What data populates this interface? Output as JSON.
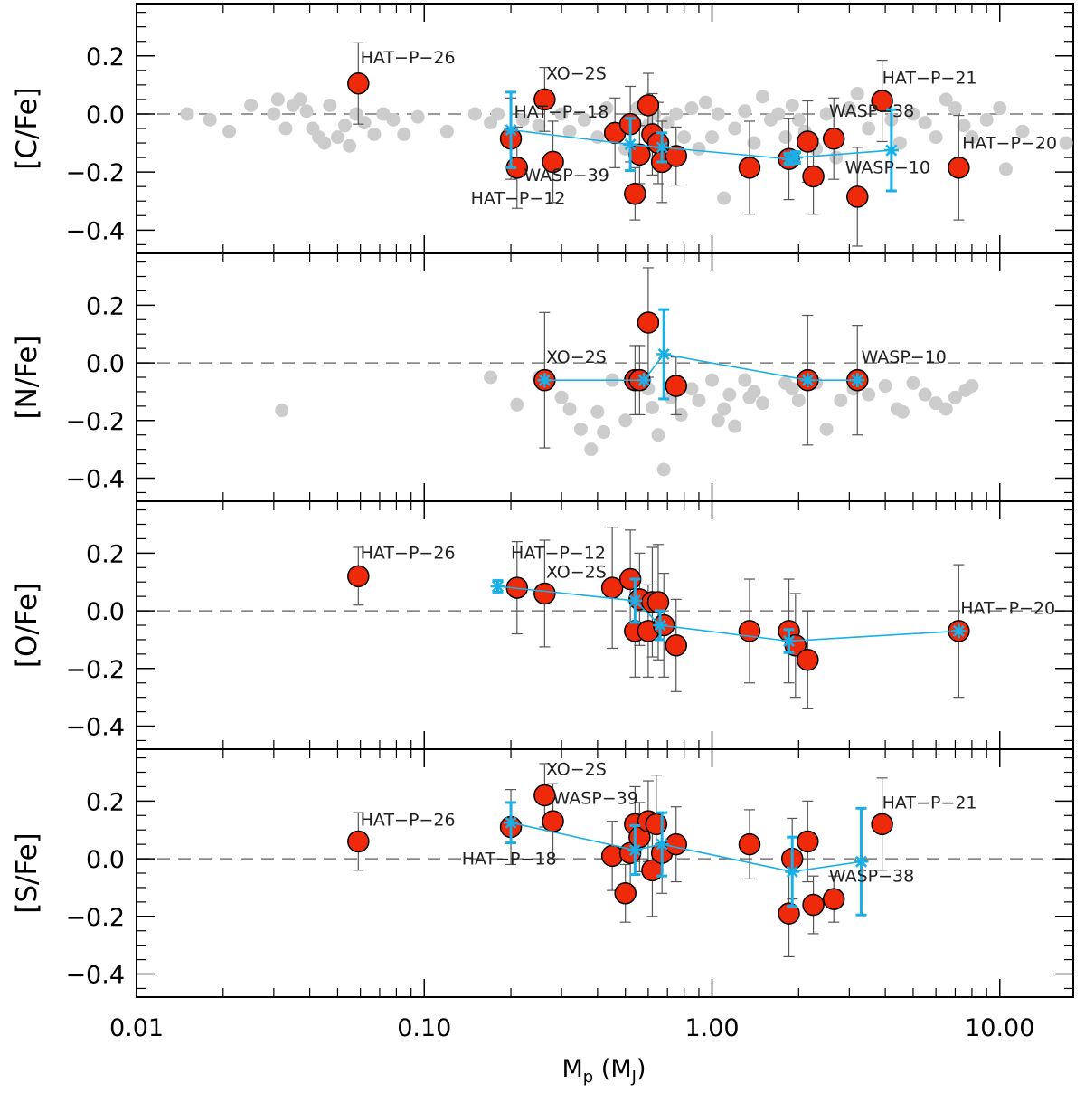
{
  "chart_data": {
    "type": "scatter",
    "x_axis": {
      "label_main": "M",
      "label_sub": "p",
      "label_unit_open": " (M",
      "label_unit_sub": "J",
      "label_unit_close": ")",
      "scale": "log",
      "xlim": [
        0.01,
        18
      ],
      "ticks": [
        0.01,
        0.1,
        1.0,
        10.0
      ],
      "tick_labels": [
        "0.01",
        "0.10",
        "1.00",
        "10.00"
      ]
    },
    "colors": {
      "planet_fill": "#ee2a0b",
      "field_star": "#cccccc",
      "trend": "#19b0e8",
      "error_bar": "#555555",
      "reference_line": "#777777"
    },
    "panels": [
      {
        "id": "c",
        "ylabel": "[C/Fe]",
        "ylim": [
          -0.48,
          0.38
        ],
        "yticks": [
          0.2,
          0.0,
          -0.2,
          -0.4
        ],
        "ytick_labels": [
          "0.2",
          "0.0",
          "−0.2",
          "−0.4"
        ],
        "field_stars": [
          [
            0.015,
            0.0
          ],
          [
            0.018,
            -0.02
          ],
          [
            0.021,
            -0.06
          ],
          [
            0.025,
            0.03
          ],
          [
            0.03,
            0.0
          ],
          [
            0.031,
            0.05
          ],
          [
            0.033,
            -0.05
          ],
          [
            0.035,
            0.03
          ],
          [
            0.037,
            0.05
          ],
          [
            0.039,
            0.01
          ],
          [
            0.041,
            -0.05
          ],
          [
            0.043,
            -0.08
          ],
          [
            0.045,
            -0.1
          ],
          [
            0.047,
            0.03
          ],
          [
            0.05,
            -0.08
          ],
          [
            0.053,
            -0.04
          ],
          [
            0.055,
            -0.11
          ],
          [
            0.058,
            0.0
          ],
          [
            0.062,
            -0.03
          ],
          [
            0.067,
            -0.07
          ],
          [
            0.072,
            0.0
          ],
          [
            0.078,
            -0.02
          ],
          [
            0.085,
            -0.07
          ],
          [
            0.095,
            -0.01
          ],
          [
            0.12,
            -0.06
          ],
          [
            0.15,
            0.0
          ],
          [
            0.17,
            -0.03
          ],
          [
            0.18,
            0.0
          ],
          [
            0.22,
            -0.02
          ],
          [
            0.25,
            -0.04
          ],
          [
            0.3,
            0.0
          ],
          [
            0.32,
            -0.06
          ],
          [
            0.36,
            -0.02
          ],
          [
            0.4,
            -0.08
          ],
          [
            0.43,
            0.02
          ],
          [
            0.5,
            -0.12
          ],
          [
            0.55,
            0.02
          ],
          [
            0.6,
            -0.04
          ],
          [
            0.63,
            0.0
          ],
          [
            0.7,
            -0.03
          ],
          [
            0.75,
            0.0
          ],
          [
            0.8,
            -0.08
          ],
          [
            0.85,
            0.02
          ],
          [
            0.9,
            -0.12
          ],
          [
            0.95,
            0.04
          ],
          [
            1.0,
            -0.08
          ],
          [
            1.05,
            0.0
          ],
          [
            1.1,
            -0.29
          ],
          [
            1.2,
            -0.05
          ],
          [
            1.3,
            0.01
          ],
          [
            1.4,
            -0.1
          ],
          [
            1.5,
            0.06
          ],
          [
            1.6,
            -0.02
          ],
          [
            1.7,
            0.0
          ],
          [
            1.8,
            -0.08
          ],
          [
            1.9,
            0.03
          ],
          [
            2.0,
            -0.02
          ],
          [
            2.1,
            -0.06
          ],
          [
            2.3,
            -0.12
          ],
          [
            2.5,
            0.0
          ],
          [
            2.7,
            -0.15
          ],
          [
            3.0,
            0.02
          ],
          [
            3.2,
            0.07
          ],
          [
            3.5,
            -0.05
          ],
          [
            3.8,
            0.04
          ],
          [
            4.2,
            -0.02
          ],
          [
            4.5,
            -0.1
          ],
          [
            5.0,
            0.0
          ],
          [
            5.5,
            -0.03
          ],
          [
            6.0,
            -0.08
          ],
          [
            6.5,
            0.05
          ],
          [
            7.0,
            0.02
          ],
          [
            7.5,
            -0.04
          ],
          [
            8.0,
            -0.08
          ],
          [
            9.0,
            -0.02
          ],
          [
            10.0,
            0.02
          ],
          [
            10.5,
            -0.19
          ],
          [
            12.0,
            -0.06
          ],
          [
            17.0,
            -0.1
          ]
        ],
        "planets": [
          [
            0.059,
            0.105,
            0.14
          ],
          [
            0.2,
            -0.085,
            0.14
          ],
          [
            0.21,
            -0.185,
            0.14
          ],
          [
            0.262,
            0.05,
            0.11
          ],
          [
            0.28,
            -0.165,
            0.14
          ],
          [
            0.46,
            -0.065,
            0.12
          ],
          [
            0.52,
            -0.035,
            0.13
          ],
          [
            0.54,
            -0.275,
            0.09
          ],
          [
            0.56,
            -0.14,
            0.1
          ],
          [
            0.6,
            0.03,
            0.11
          ],
          [
            0.62,
            -0.07,
            0.14
          ],
          [
            0.65,
            -0.1,
            0.14
          ],
          [
            0.67,
            -0.165,
            0.14
          ],
          [
            0.75,
            -0.145,
            0.1
          ],
          [
            1.35,
            -0.185,
            0.16
          ],
          [
            1.85,
            -0.155,
            0.14
          ],
          [
            2.15,
            -0.095,
            0.14
          ],
          [
            2.25,
            -0.215,
            0.13
          ],
          [
            2.65,
            -0.085,
            0.14
          ],
          [
            3.2,
            -0.285,
            0.17
          ],
          [
            3.9,
            0.045,
            0.14
          ],
          [
            7.2,
            -0.185,
            0.18
          ]
        ],
        "trend": [
          [
            0.2,
            -0.055,
            0.13
          ],
          [
            0.52,
            -0.105,
            0.09
          ],
          [
            0.67,
            -0.115,
            0.05
          ],
          [
            1.85,
            -0.155,
            0.02
          ],
          [
            1.95,
            -0.15,
            0.02
          ],
          [
            4.2,
            -0.125,
            0.14
          ]
        ],
        "annotations": [
          {
            "text": "HAT−P−26",
            "x": 0.06,
            "y": 0.175
          },
          {
            "text": "XO−2S",
            "x": 0.265,
            "y": 0.12
          },
          {
            "text": "HAT−P−18",
            "x": 0.205,
            "y": -0.012
          },
          {
            "text": "WASP−39",
            "x": 0.222,
            "y": -0.23
          },
          {
            "text": "HAT−P−12",
            "x": 0.145,
            "y": -0.31
          },
          {
            "text": "HAT−P−21",
            "x": 3.9,
            "y": 0.105
          },
          {
            "text": "WASP−38",
            "x": 2.55,
            "y": -0.01
          },
          {
            "text": "WASP−10",
            "x": 2.9,
            "y": -0.205
          },
          {
            "text": "HAT−P−20",
            "x": 7.4,
            "y": -0.12
          }
        ]
      },
      {
        "id": "n",
        "ylabel": "[N/Fe]",
        "ylim": [
          -0.48,
          0.38
        ],
        "yticks": [
          0.2,
          0.0,
          -0.2,
          -0.4
        ],
        "ytick_labels": [
          "0.2",
          "0.0",
          "−0.2",
          "−0.4"
        ],
        "field_stars": [
          [
            0.032,
            -0.165
          ],
          [
            0.17,
            -0.05
          ],
          [
            0.21,
            -0.145
          ],
          [
            0.25,
            -0.05
          ],
          [
            0.3,
            -0.12
          ],
          [
            0.32,
            -0.16
          ],
          [
            0.35,
            -0.23
          ],
          [
            0.38,
            -0.3
          ],
          [
            0.4,
            -0.17
          ],
          [
            0.42,
            -0.24
          ],
          [
            0.45,
            -0.06
          ],
          [
            0.5,
            -0.2
          ],
          [
            0.55,
            -0.07
          ],
          [
            0.6,
            -0.09
          ],
          [
            0.62,
            -0.155
          ],
          [
            0.65,
            -0.25
          ],
          [
            0.68,
            -0.37
          ],
          [
            0.72,
            -0.12
          ],
          [
            0.78,
            -0.18
          ],
          [
            0.85,
            -0.09
          ],
          [
            0.9,
            -0.13
          ],
          [
            1.0,
            -0.06
          ],
          [
            1.05,
            -0.2
          ],
          [
            1.1,
            -0.16
          ],
          [
            1.15,
            -0.11
          ],
          [
            1.2,
            -0.22
          ],
          [
            1.3,
            -0.06
          ],
          [
            1.35,
            -0.12
          ],
          [
            1.4,
            -0.1
          ],
          [
            1.5,
            -0.14
          ],
          [
            1.8,
            -0.07
          ],
          [
            1.9,
            -0.09
          ],
          [
            2.0,
            -0.13
          ],
          [
            2.3,
            -0.07
          ],
          [
            2.5,
            -0.23
          ],
          [
            2.8,
            -0.13
          ],
          [
            3.1,
            -0.09
          ],
          [
            3.5,
            -0.11
          ],
          [
            4.0,
            -0.08
          ],
          [
            4.4,
            -0.16
          ],
          [
            4.6,
            -0.17
          ],
          [
            5.0,
            -0.07
          ],
          [
            5.5,
            -0.11
          ],
          [
            6.0,
            -0.14
          ],
          [
            6.5,
            -0.16
          ],
          [
            7.0,
            -0.12
          ],
          [
            7.6,
            -0.095
          ],
          [
            8.0,
            -0.08
          ]
        ],
        "planets": [
          [
            0.262,
            -0.06,
            0.235
          ],
          [
            0.54,
            -0.06,
            0.12
          ],
          [
            0.56,
            -0.06,
            0.12
          ],
          [
            0.6,
            0.14,
            0.19
          ],
          [
            0.75,
            -0.08,
            0.1
          ],
          [
            2.15,
            -0.06,
            0.225
          ],
          [
            3.2,
            -0.06,
            0.19
          ]
        ],
        "trend": [
          [
            0.262,
            -0.06,
            0.01
          ],
          [
            0.58,
            -0.06,
            0.01
          ],
          [
            0.68,
            0.03,
            0.155
          ],
          [
            2.15,
            -0.06,
            0.01
          ],
          [
            3.2,
            -0.06,
            0.01
          ]
        ],
        "annotations": [
          {
            "text": "XO−2S",
            "x": 0.265,
            "y": 0.0
          },
          {
            "text": "WASP−10",
            "x": 3.3,
            "y": 0.0
          }
        ]
      },
      {
        "id": "o",
        "ylabel": "[O/Fe]",
        "ylim": [
          -0.48,
          0.38
        ],
        "yticks": [
          0.2,
          0.0,
          -0.2,
          -0.4
        ],
        "ytick_labels": [
          "0.2",
          "0.0",
          "−0.2",
          "−0.4"
        ],
        "field_stars": [],
        "planets": [
          [
            0.059,
            0.12,
            0.1
          ],
          [
            0.21,
            0.08,
            0.16
          ],
          [
            0.262,
            0.06,
            0.185
          ],
          [
            0.45,
            0.08,
            0.21
          ],
          [
            0.52,
            0.11,
            0.17
          ],
          [
            0.54,
            -0.07,
            0.16
          ],
          [
            0.56,
            0.04,
            0.16
          ],
          [
            0.6,
            -0.07,
            0.16
          ],
          [
            0.62,
            0.03,
            0.19
          ],
          [
            0.65,
            0.03,
            0.2
          ],
          [
            0.68,
            -0.05,
            0.18
          ],
          [
            0.75,
            -0.12,
            0.16
          ],
          [
            1.35,
            -0.07,
            0.18
          ],
          [
            1.85,
            -0.07,
            0.18
          ],
          [
            1.95,
            -0.12,
            0.18
          ],
          [
            2.15,
            -0.17,
            0.17
          ],
          [
            7.2,
            -0.07,
            0.23
          ]
        ],
        "trend": [
          [
            0.18,
            0.085,
            0.02
          ],
          [
            0.54,
            0.035,
            0.075
          ],
          [
            0.66,
            -0.05,
            0.05
          ],
          [
            1.85,
            -0.105,
            0.04
          ],
          [
            7.2,
            -0.07,
            0.01
          ]
        ],
        "annotations": [
          {
            "text": "HAT−P−26",
            "x": 0.06,
            "y": 0.18
          },
          {
            "text": "HAT−P−12",
            "x": 0.2,
            "y": 0.18
          },
          {
            "text": "XO−2S",
            "x": 0.265,
            "y": 0.115
          },
          {
            "text": "HAT−P−20",
            "x": 7.3,
            "y": -0.01
          }
        ]
      },
      {
        "id": "s",
        "ylabel": "[S/Fe]",
        "ylim": [
          -0.48,
          0.38
        ],
        "yticks": [
          0.2,
          0.0,
          -0.2,
          -0.4
        ],
        "ytick_labels": [
          "0.2",
          "0.0",
          "−0.2",
          "−0.4"
        ],
        "field_stars": [],
        "planets": [
          [
            0.059,
            0.06,
            0.1
          ],
          [
            0.2,
            0.11,
            0.13
          ],
          [
            0.262,
            0.22,
            0.11
          ],
          [
            0.28,
            0.13,
            0.13
          ],
          [
            0.45,
            0.01,
            0.12
          ],
          [
            0.5,
            -0.12,
            0.1
          ],
          [
            0.52,
            0.02,
            0.12
          ],
          [
            0.54,
            0.12,
            0.13
          ],
          [
            0.56,
            0.075,
            0.12
          ],
          [
            0.6,
            0.13,
            0.14
          ],
          [
            0.62,
            -0.04,
            0.16
          ],
          [
            0.64,
            0.12,
            0.17
          ],
          [
            0.67,
            0.02,
            0.14
          ],
          [
            0.75,
            0.05,
            0.13
          ],
          [
            1.35,
            0.05,
            0.12
          ],
          [
            1.85,
            -0.19,
            0.15
          ],
          [
            1.9,
            0.0,
            0.14
          ],
          [
            2.15,
            0.06,
            0.14
          ],
          [
            2.25,
            -0.16,
            0.1
          ],
          [
            2.65,
            -0.14,
            0.08
          ],
          [
            3.9,
            0.12,
            0.16
          ]
        ],
        "trend": [
          [
            0.2,
            0.125,
            0.07
          ],
          [
            0.54,
            0.03,
            0.085
          ],
          [
            0.67,
            0.05,
            0.11
          ],
          [
            1.9,
            -0.045,
            0.12
          ],
          [
            3.3,
            -0.01,
            0.185
          ]
        ],
        "annotations": [
          {
            "text": "XO−2S",
            "x": 0.265,
            "y": 0.29
          },
          {
            "text": "WASP−39",
            "x": 0.28,
            "y": 0.19
          },
          {
            "text": "HAT−P−26",
            "x": 0.06,
            "y": 0.115
          },
          {
            "text": "HAT−P−18",
            "x": 0.135,
            "y": -0.02
          },
          {
            "text": "HAT−P−21",
            "x": 3.9,
            "y": 0.175
          },
          {
            "text": "WASP−38",
            "x": 2.55,
            "y": -0.08
          }
        ]
      }
    ]
  }
}
